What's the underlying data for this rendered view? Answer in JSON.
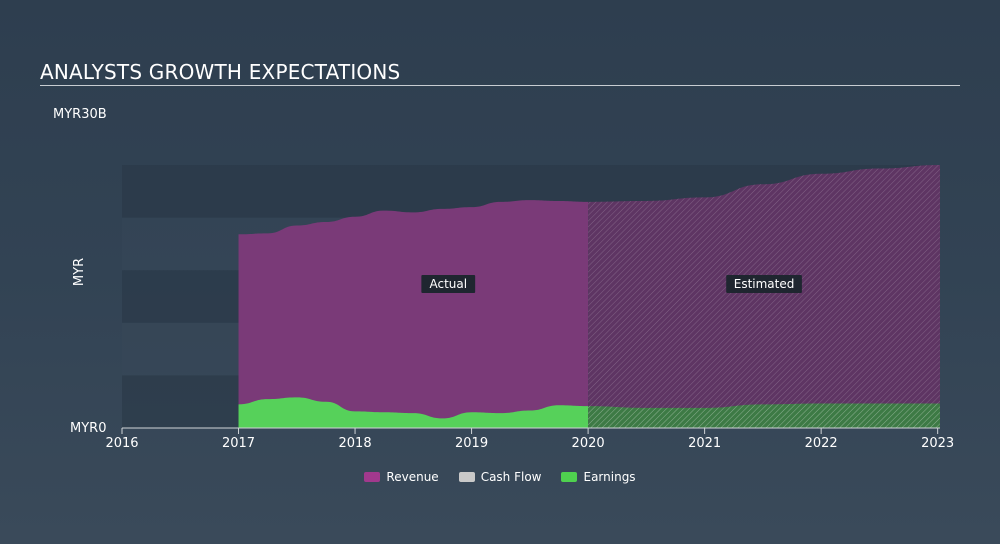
{
  "page": {
    "title": "ANALYSTS GROWTH EXPECTATIONS"
  },
  "chart_data": {
    "type": "area",
    "title": "ANALYSTS GROWTH EXPECTATIONS",
    "ylabel": "MYR",
    "ytick_labels": [
      "MYR30B",
      "MYR0"
    ],
    "ylim": [
      0,
      30
    ],
    "xlim": [
      2016,
      2023.02
    ],
    "x_ticks": [
      2016,
      2017,
      2018,
      2019,
      2020,
      2021,
      2022,
      2023
    ],
    "x_tick_labels": [
      "2016",
      "2017",
      "2018",
      "2019",
      "2020",
      "2021",
      "2022",
      "2023"
    ],
    "estimate_start": 2020,
    "annotations": {
      "actual": "Actual",
      "estimated": "Estimated"
    },
    "series": [
      {
        "name": "Revenue",
        "color": "#a1398d",
        "x": [
          2017,
          2017.25,
          2017.5,
          2017.75,
          2018,
          2018.25,
          2018.5,
          2018.75,
          2019,
          2019.25,
          2019.5,
          2019.75,
          2020,
          2020.5,
          2021,
          2021.5,
          2022,
          2022.5,
          2023.02
        ],
        "values": [
          22.1,
          22.2,
          23.1,
          23.5,
          24.1,
          24.8,
          24.6,
          25.0,
          25.2,
          25.8,
          26.0,
          25.9,
          25.8,
          25.9,
          26.3,
          27.8,
          29.0,
          29.6,
          30.0
        ]
      },
      {
        "name": "Earnings",
        "color": "#4fd14f",
        "x": [
          2017,
          2017.25,
          2017.5,
          2017.75,
          2018,
          2018.25,
          2018.5,
          2018.75,
          2019,
          2019.25,
          2019.5,
          2019.75,
          2020,
          2020.5,
          2021,
          2021.5,
          2022,
          2022.5,
          2023.02
        ],
        "values": [
          2.7,
          3.3,
          3.5,
          3.0,
          1.9,
          1.8,
          1.7,
          1.1,
          1.8,
          1.7,
          2.0,
          2.6,
          2.5,
          2.3,
          2.3,
          2.7,
          2.8,
          2.8,
          2.8
        ]
      },
      {
        "name": "Cash Flow",
        "color": "#c9c9c9",
        "x": [],
        "values": []
      }
    ],
    "legend": [
      {
        "label": "Revenue",
        "color": "#a1398d"
      },
      {
        "label": "Cash Flow",
        "color": "#c9c9c9"
      },
      {
        "label": "Earnings",
        "color": "#4fd14f"
      }
    ]
  }
}
